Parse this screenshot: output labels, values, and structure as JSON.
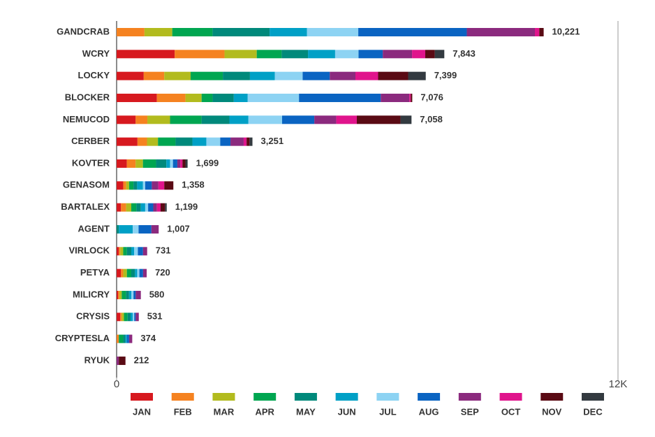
{
  "chart_data": {
    "type": "stacked-bar-horizontal",
    "categories": [
      "GANDCRAB",
      "WCRY",
      "LOCKY",
      "BLOCKER",
      "NEMUCOD",
      "CERBER",
      "KOVTER",
      "GENASOM",
      "BARTALEX",
      "AGENT",
      "VIRLOCK",
      "PETYA",
      "MILICRY",
      "CRYSIS",
      "CRYPTESLA",
      "RYUK"
    ],
    "series": [
      {
        "name": "JAN",
        "color": "#d7191f",
        "values": [
          0,
          1391,
          649,
          964,
          456,
          499,
          245,
          158,
          105,
          0,
          53,
          105,
          35,
          88,
          0,
          0
        ]
      },
      {
        "name": "FEB",
        "color": "#f58220",
        "values": [
          666,
          1192,
          491,
          684,
          280,
          228,
          210,
          70,
          123,
          0,
          35,
          53,
          35,
          35,
          53,
          0
        ]
      },
      {
        "name": "MAR",
        "color": "#b2bb1e",
        "values": [
          666,
          771,
          631,
          386,
          543,
          263,
          175,
          70,
          123,
          0,
          70,
          88,
          53,
          53,
          0,
          0
        ]
      },
      {
        "name": "APR",
        "color": "#00a651",
        "values": [
          964,
          596,
          771,
          263,
          754,
          421,
          315,
          105,
          123,
          0,
          88,
          105,
          105,
          88,
          105,
          0
        ]
      },
      {
        "name": "MAY",
        "color": "#00897b",
        "values": [
          1367,
          631,
          649,
          508,
          666,
          403,
          245,
          88,
          105,
          53,
          105,
          88,
          70,
          70,
          53,
          0
        ]
      },
      {
        "name": "JUN",
        "color": "#00a0c6",
        "values": [
          894,
          649,
          596,
          333,
          456,
          333,
          88,
          140,
          105,
          333,
          70,
          53,
          53,
          53,
          35,
          0
        ]
      },
      {
        "name": "JUL",
        "color": "#8dd3f3",
        "values": [
          1227,
          561,
          666,
          1227,
          806,
          333,
          70,
          53,
          70,
          140,
          88,
          53,
          53,
          35,
          0,
          0
        ]
      },
      {
        "name": "AUG",
        "color": "#0a64c2",
        "values": [
          2597,
          579,
          649,
          1957,
          771,
          245,
          105,
          158,
          123,
          306,
          123,
          88,
          53,
          35,
          53,
          0
        ]
      },
      {
        "name": "SEP",
        "color": "#8b2a7e",
        "values": [
          1630,
          701,
          614,
          684,
          526,
          316,
          70,
          158,
          88,
          175,
          99,
          87,
          123,
          74,
          75,
          53
        ]
      },
      {
        "name": "OCT",
        "color": "#e0148c",
        "values": [
          105,
          316,
          543,
          35,
          491,
          70,
          53,
          140,
          88,
          0,
          0,
          0,
          0,
          0,
          0,
          0
        ]
      },
      {
        "name": "NOV",
        "color": "#5a0a14",
        "values": [
          105,
          228,
          719,
          35,
          1046,
          70,
          70,
          218,
          105,
          0,
          0,
          0,
          0,
          0,
          0,
          159
        ]
      },
      {
        "name": "DEC",
        "color": "#333a40",
        "values": [
          0,
          228,
          421,
          0,
          263,
          70,
          53,
          0,
          41,
          0,
          0,
          0,
          0,
          0,
          0,
          0
        ]
      }
    ],
    "totals": [
      10221,
      7843,
      7399,
      7076,
      7058,
      3251,
      1699,
      1358,
      1199,
      1007,
      731,
      720,
      580,
      531,
      374,
      212
    ],
    "total_labels": [
      "10,221",
      "7,843",
      "7,399",
      "7,076",
      "7,058",
      "3,251",
      "1,699",
      "1,358",
      "1,199",
      "1,007",
      "731",
      "720",
      "580",
      "531",
      "374",
      "212"
    ],
    "xlim": [
      0,
      12000
    ],
    "xticks": [
      0,
      {
        "value": 12000,
        "label": "12K"
      }
    ],
    "legend": "bottom"
  }
}
